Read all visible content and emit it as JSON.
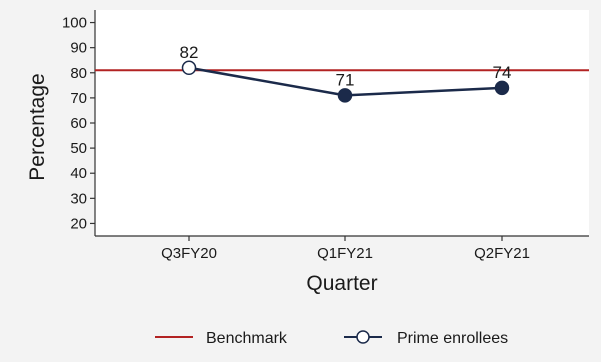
{
  "chart_data": {
    "type": "line",
    "title": "",
    "xlabel": "Quarter",
    "ylabel": "Percentage",
    "categories": [
      "Q3FY20",
      "Q1FY21",
      "Q2FY21"
    ],
    "ylim": [
      15,
      105
    ],
    "yticks": [
      20,
      30,
      40,
      50,
      60,
      70,
      80,
      90,
      100
    ],
    "grid": false,
    "legend_position": "bottom",
    "series": [
      {
        "name": "Prime enrollees",
        "values": [
          82,
          71,
          74
        ],
        "data_labels": [
          "82",
          "71",
          "74"
        ],
        "color": "#1b2a4a",
        "marker_fill": [
          "#ffffff",
          "#1b2a4a",
          "#1b2a4a"
        ]
      }
    ],
    "reference_lines": [
      {
        "name": "Benchmark",
        "value": 81,
        "color": "#b22222"
      }
    ]
  },
  "legend": {
    "benchmark_label": "Benchmark",
    "series_label": "Prime enrollees"
  }
}
